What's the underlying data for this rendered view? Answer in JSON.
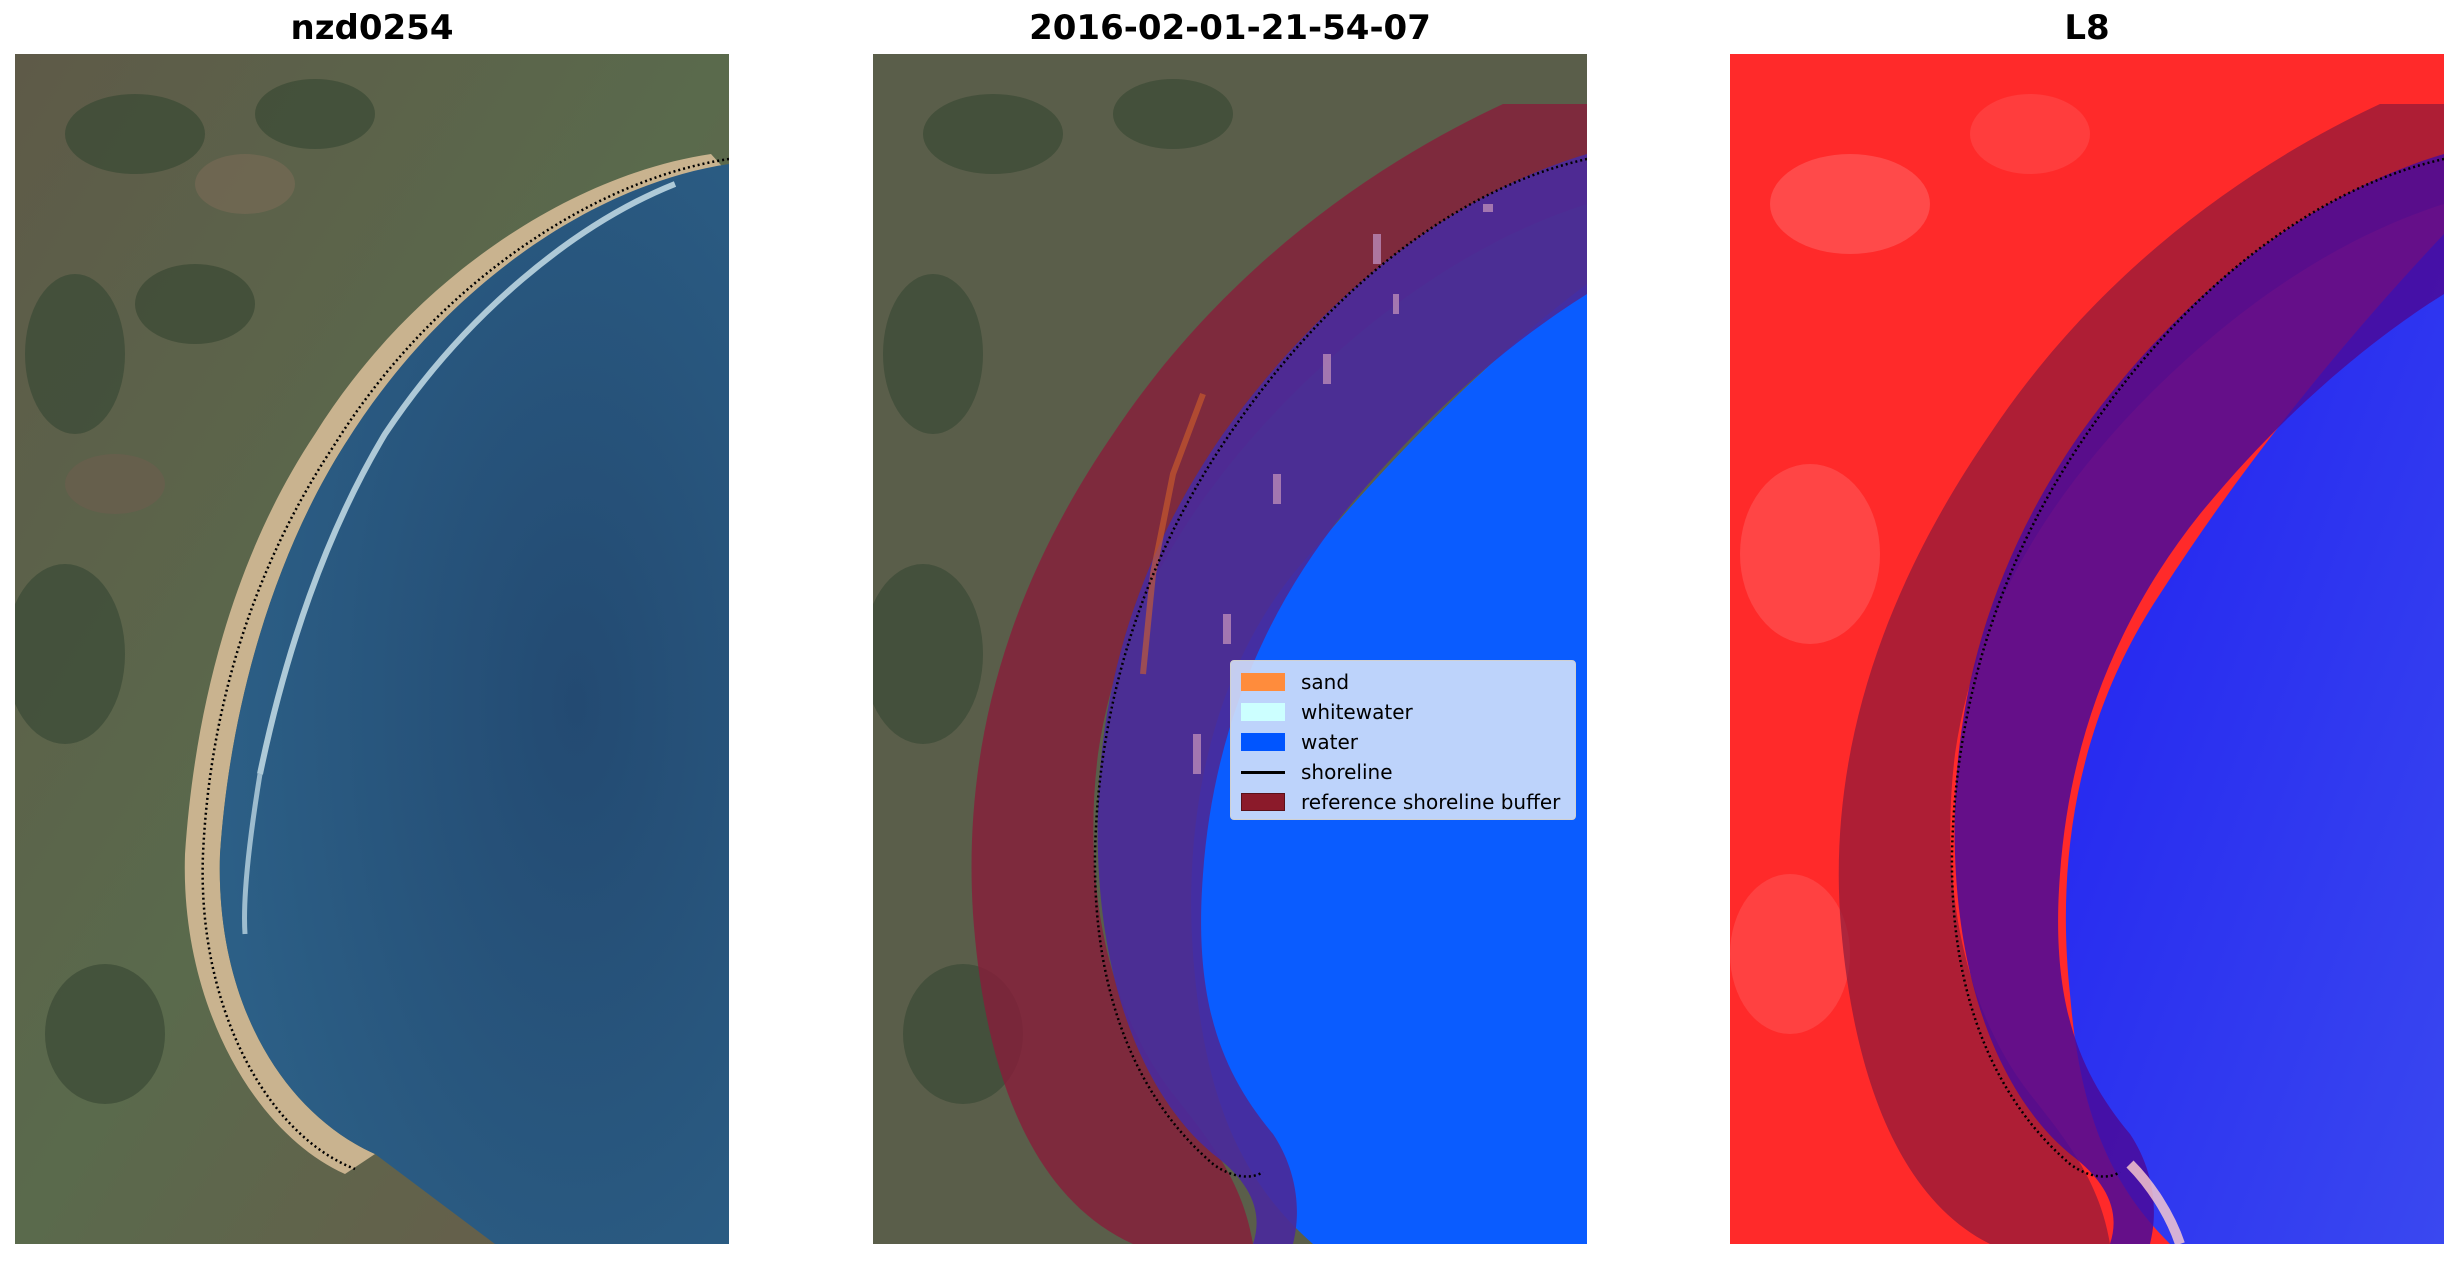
{
  "panels": [
    {
      "title": "nzd0254"
    },
    {
      "title": "2016-02-01-21-54-07"
    },
    {
      "title": "L8"
    }
  ],
  "legend": {
    "items": [
      {
        "label": "sand",
        "color": "#ff8c3c"
      },
      {
        "label": "whitewater",
        "color": "#ccffff"
      },
      {
        "label": "water",
        "color": "#0055ff"
      },
      {
        "label": "shoreline",
        "color": "#000000"
      },
      {
        "label": "reference shoreline buffer",
        "color": "#8b1a2a"
      }
    ]
  },
  "colors": {
    "land": "#5a5a46",
    "ocean": "#27507a",
    "classified_water": "#0a5cff",
    "buffer": "#8b1a3a",
    "buffer_over_water": "#4a2a9a",
    "index_land": "#ff1e1e",
    "index_water": "#0a14f5"
  }
}
